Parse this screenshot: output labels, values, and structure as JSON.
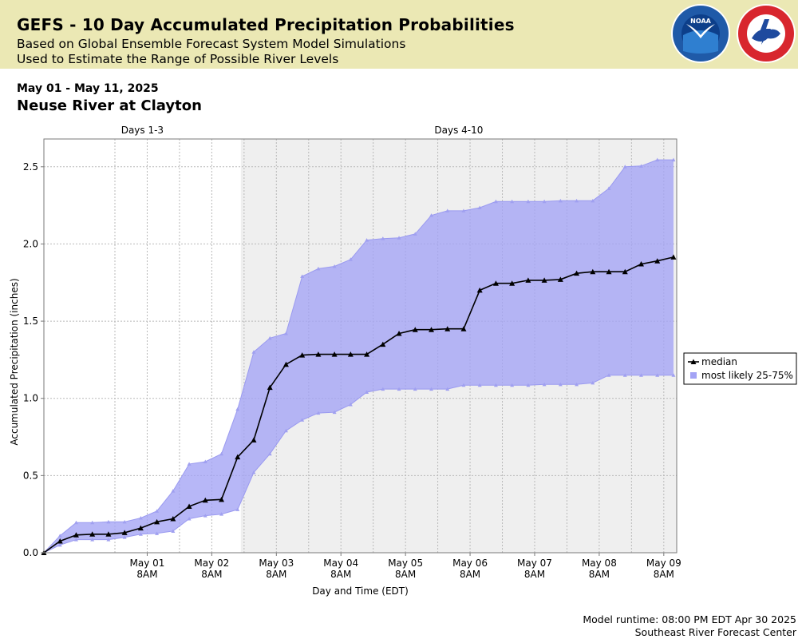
{
  "header": {
    "title": "GEFS - 10 Day Accumulated Precipitation Probabilities",
    "subtitle1": "Based on Global Ensemble Forecast System Model Simulations",
    "subtitle2": "Used to Estimate the Range of Possible River Levels",
    "noaa_logo_icon": "noaa-logo-icon",
    "nws_logo_icon": "nws-logo-icon"
  },
  "date_range": "May 01 - May 11, 2025",
  "location": "Neuse River at Clayton",
  "footer": {
    "runtime": "Model runtime: 08:00 PM EDT Apr 30 2025",
    "center": "Southeast River Forecast Center"
  },
  "chart_data": {
    "type": "area",
    "xlabel": "Day and Time (EDT)",
    "ylabel": "Accumulated Precipitation (inches)",
    "ylim": [
      0,
      2.68
    ],
    "yticks": [
      "0.0",
      "0.5",
      "1.0",
      "1.5",
      "2.0",
      "2.5"
    ],
    "ytick_values": [
      0,
      0.5,
      1.0,
      1.5,
      2.0,
      2.5
    ],
    "x_hours_domain": [
      -20,
      176
    ],
    "x_ticks": [
      {
        "date": "May 01",
        "time": "8AM",
        "hour": 12
      },
      {
        "date": "May 02",
        "time": "8AM",
        "hour": 32
      },
      {
        "date": "May 03",
        "time": "8AM",
        "hour": 52
      },
      {
        "date": "May 04",
        "time": "8AM",
        "hour": 72
      },
      {
        "date": "May 05",
        "time": "8AM",
        "hour": 92
      },
      {
        "date": "May 06",
        "time": "8AM",
        "hour": 112
      },
      {
        "date": "May 07",
        "time": "8AM",
        "hour": 132
      },
      {
        "date": "May 08",
        "time": "8AM",
        "hour": 152
      },
      {
        "date": "May 09",
        "time": "8AM",
        "hour": 172
      }
    ],
    "periods": [
      {
        "label": "Days 1-3",
        "start_hour": -20,
        "end_hour": 41,
        "shaded": false
      },
      {
        "label": "Days 4-10",
        "start_hour": 41,
        "end_hour": 176,
        "shaded": true
      }
    ],
    "x": [
      -20,
      -15,
      -10,
      -5,
      0,
      5,
      10,
      15,
      20,
      25,
      30,
      35,
      40,
      45,
      50,
      55,
      60,
      65,
      70,
      75,
      80,
      85,
      90,
      95,
      100,
      105,
      110,
      115,
      120,
      125,
      130,
      135,
      140,
      145,
      150,
      155,
      160,
      165,
      170,
      175
    ],
    "series": [
      {
        "name": "median",
        "color": "#000000",
        "marker": "triangle",
        "values": [
          0.0,
          0.075,
          0.115,
          0.12,
          0.12,
          0.13,
          0.16,
          0.2,
          0.22,
          0.3,
          0.34,
          0.345,
          0.62,
          0.73,
          1.07,
          1.22,
          1.28,
          1.285,
          1.285,
          1.285,
          1.285,
          1.35,
          1.42,
          1.445,
          1.445,
          1.45,
          1.45,
          1.7,
          1.745,
          1.745,
          1.765,
          1.765,
          1.77,
          1.81,
          1.82,
          1.82,
          1.82,
          1.87,
          1.89,
          1.915
        ]
      },
      {
        "name": "most likely 25-75%",
        "color": "#a3a3f5",
        "lower": [
          0.0,
          0.05,
          0.085,
          0.085,
          0.085,
          0.1,
          0.12,
          0.125,
          0.14,
          0.22,
          0.24,
          0.25,
          0.28,
          0.52,
          0.64,
          0.79,
          0.86,
          0.905,
          0.91,
          0.96,
          1.04,
          1.06,
          1.06,
          1.06,
          1.06,
          1.06,
          1.085,
          1.085,
          1.085,
          1.085,
          1.085,
          1.09,
          1.09,
          1.09,
          1.1,
          1.15,
          1.15,
          1.15,
          1.15,
          1.15
        ],
        "upper": [
          0.0,
          0.11,
          0.195,
          0.195,
          0.2,
          0.2,
          0.225,
          0.27,
          0.4,
          0.575,
          0.59,
          0.64,
          0.93,
          1.3,
          1.39,
          1.42,
          1.79,
          1.84,
          1.855,
          1.9,
          2.025,
          2.035,
          2.04,
          2.065,
          2.185,
          2.215,
          2.215,
          2.235,
          2.275,
          2.275,
          2.275,
          2.275,
          2.28,
          2.28,
          2.28,
          2.36,
          2.5,
          2.505,
          2.545,
          2.545
        ]
      }
    ],
    "legend_position": "right",
    "grid": true
  }
}
